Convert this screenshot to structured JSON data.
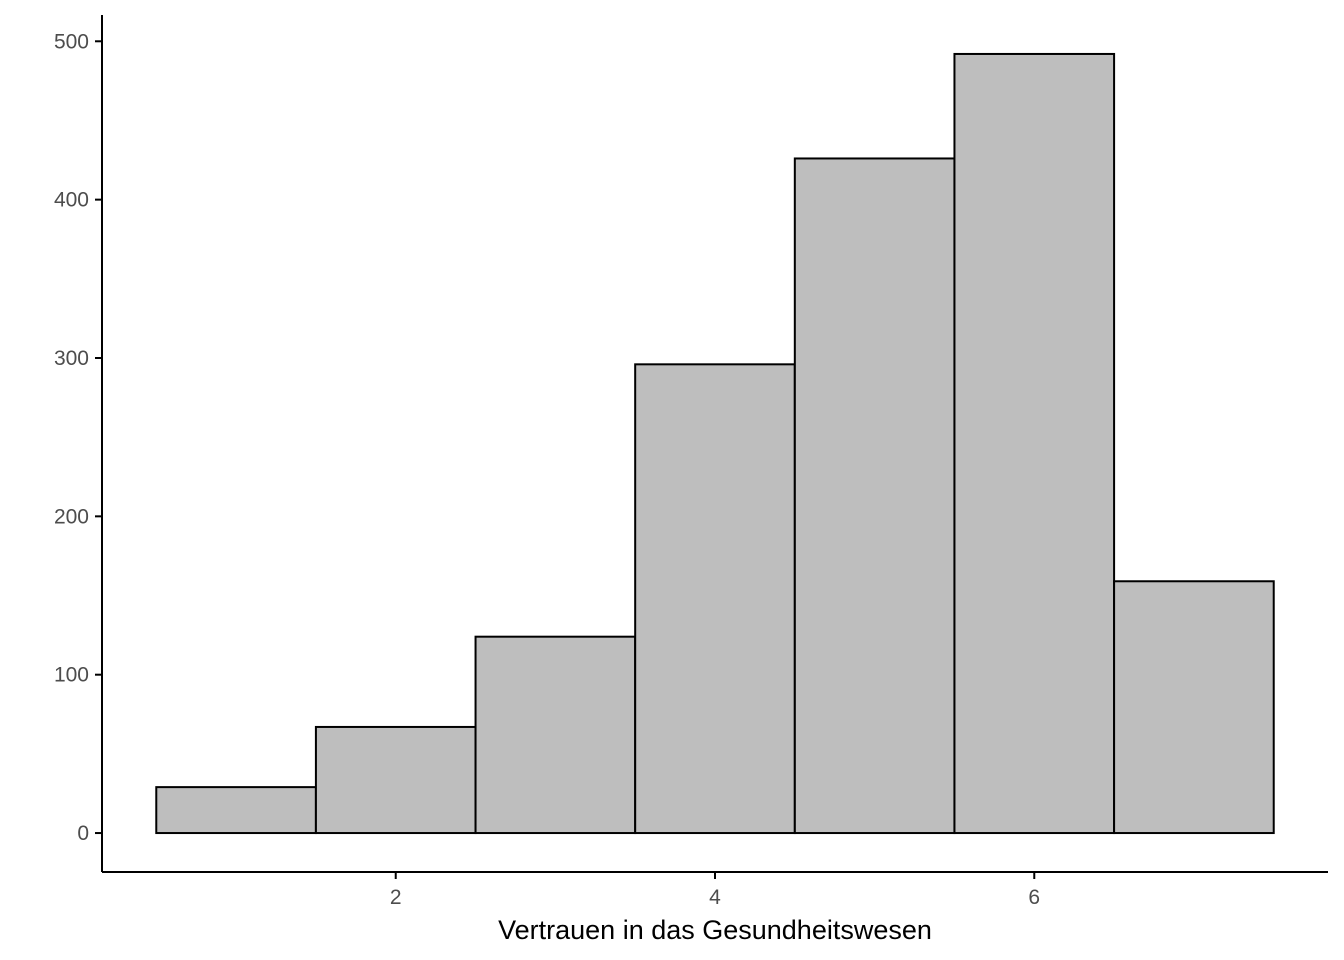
{
  "chart_data": {
    "type": "bar",
    "title": "",
    "xlabel": "Vertrauen in das Gesundheitswesen",
    "ylabel": "",
    "bins": [
      {
        "x": 1,
        "count": 29
      },
      {
        "x": 2,
        "count": 67
      },
      {
        "x": 3,
        "count": 124
      },
      {
        "x": 4,
        "count": 296
      },
      {
        "x": 5,
        "count": 426
      },
      {
        "x": 6,
        "count": 492
      },
      {
        "x": 7,
        "count": 159
      }
    ],
    "bin_width": 1,
    "xlim": [
      0.16,
      7.84
    ],
    "ylim": [
      -24.6,
      516.6
    ],
    "x_ticks": [
      {
        "value": 2,
        "label": "2"
      },
      {
        "value": 4,
        "label": "4"
      },
      {
        "value": 6,
        "label": "6"
      }
    ],
    "y_ticks": [
      {
        "value": 0,
        "label": "0"
      },
      {
        "value": 100,
        "label": "100"
      },
      {
        "value": 200,
        "label": "200"
      },
      {
        "value": 300,
        "label": "300"
      },
      {
        "value": 400,
        "label": "400"
      },
      {
        "value": 500,
        "label": "500"
      }
    ],
    "grid": false,
    "legend": "none",
    "colors": {
      "bar_fill": "#bebebe",
      "bar_stroke": "#000000",
      "axis": "#000000",
      "tick_label": "#4d4d4d"
    }
  }
}
